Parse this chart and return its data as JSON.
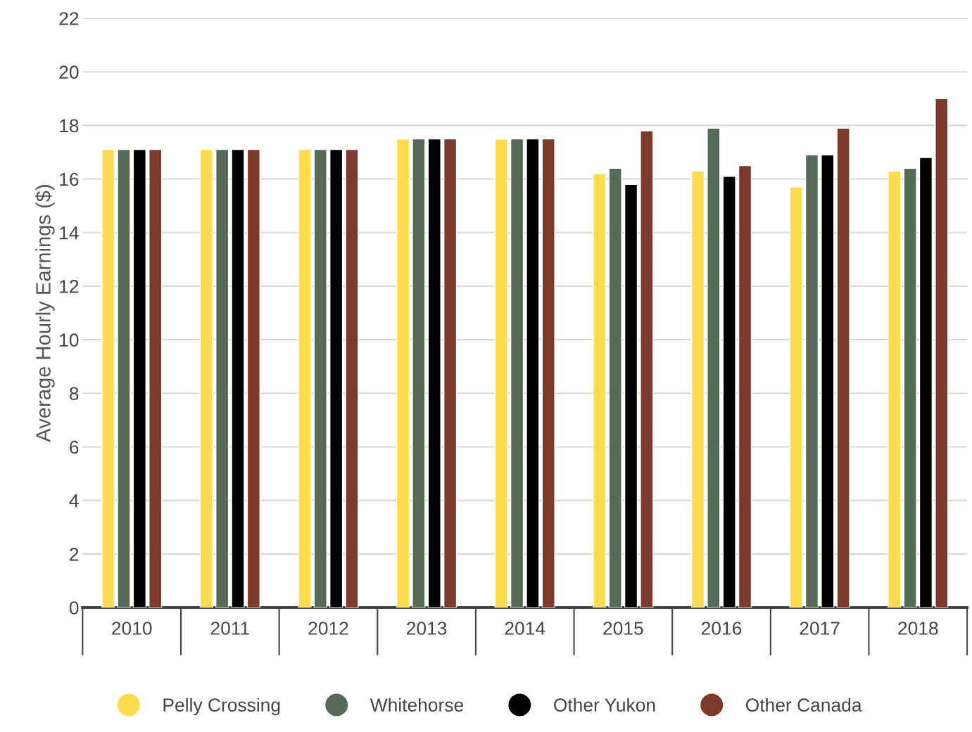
{
  "chart_data": {
    "type": "bar",
    "ylabel": "Average Hourly Earnings ($)",
    "categories": [
      "2010",
      "2011",
      "2012",
      "2013",
      "2014",
      "2015",
      "2016",
      "2017",
      "2018"
    ],
    "series": [
      {
        "name": "Pelly Crossing",
        "color": "#fddc4f",
        "values": [
          17.1,
          17.1,
          17.1,
          17.5,
          17.5,
          16.2,
          16.3,
          15.7,
          16.3
        ]
      },
      {
        "name": "Whitehorse",
        "color": "#566a58",
        "values": [
          17.1,
          17.1,
          17.1,
          17.5,
          17.5,
          16.4,
          17.9,
          16.9,
          16.4
        ]
      },
      {
        "name": "Other Yukon",
        "color": "#000000",
        "values": [
          17.1,
          17.1,
          17.1,
          17.5,
          17.5,
          15.8,
          16.1,
          16.9,
          16.8
        ]
      },
      {
        "name": "Other Canada",
        "color": "#7b3a2c",
        "values": [
          17.1,
          17.1,
          17.1,
          17.5,
          17.5,
          17.8,
          16.5,
          17.9,
          19.0
        ]
      }
    ],
    "ylim": [
      0,
      22
    ],
    "yticks": [
      0,
      2,
      4,
      6,
      8,
      10,
      12,
      14,
      16,
      18,
      20,
      22
    ],
    "grid": "y",
    "legend": "bottom"
  }
}
